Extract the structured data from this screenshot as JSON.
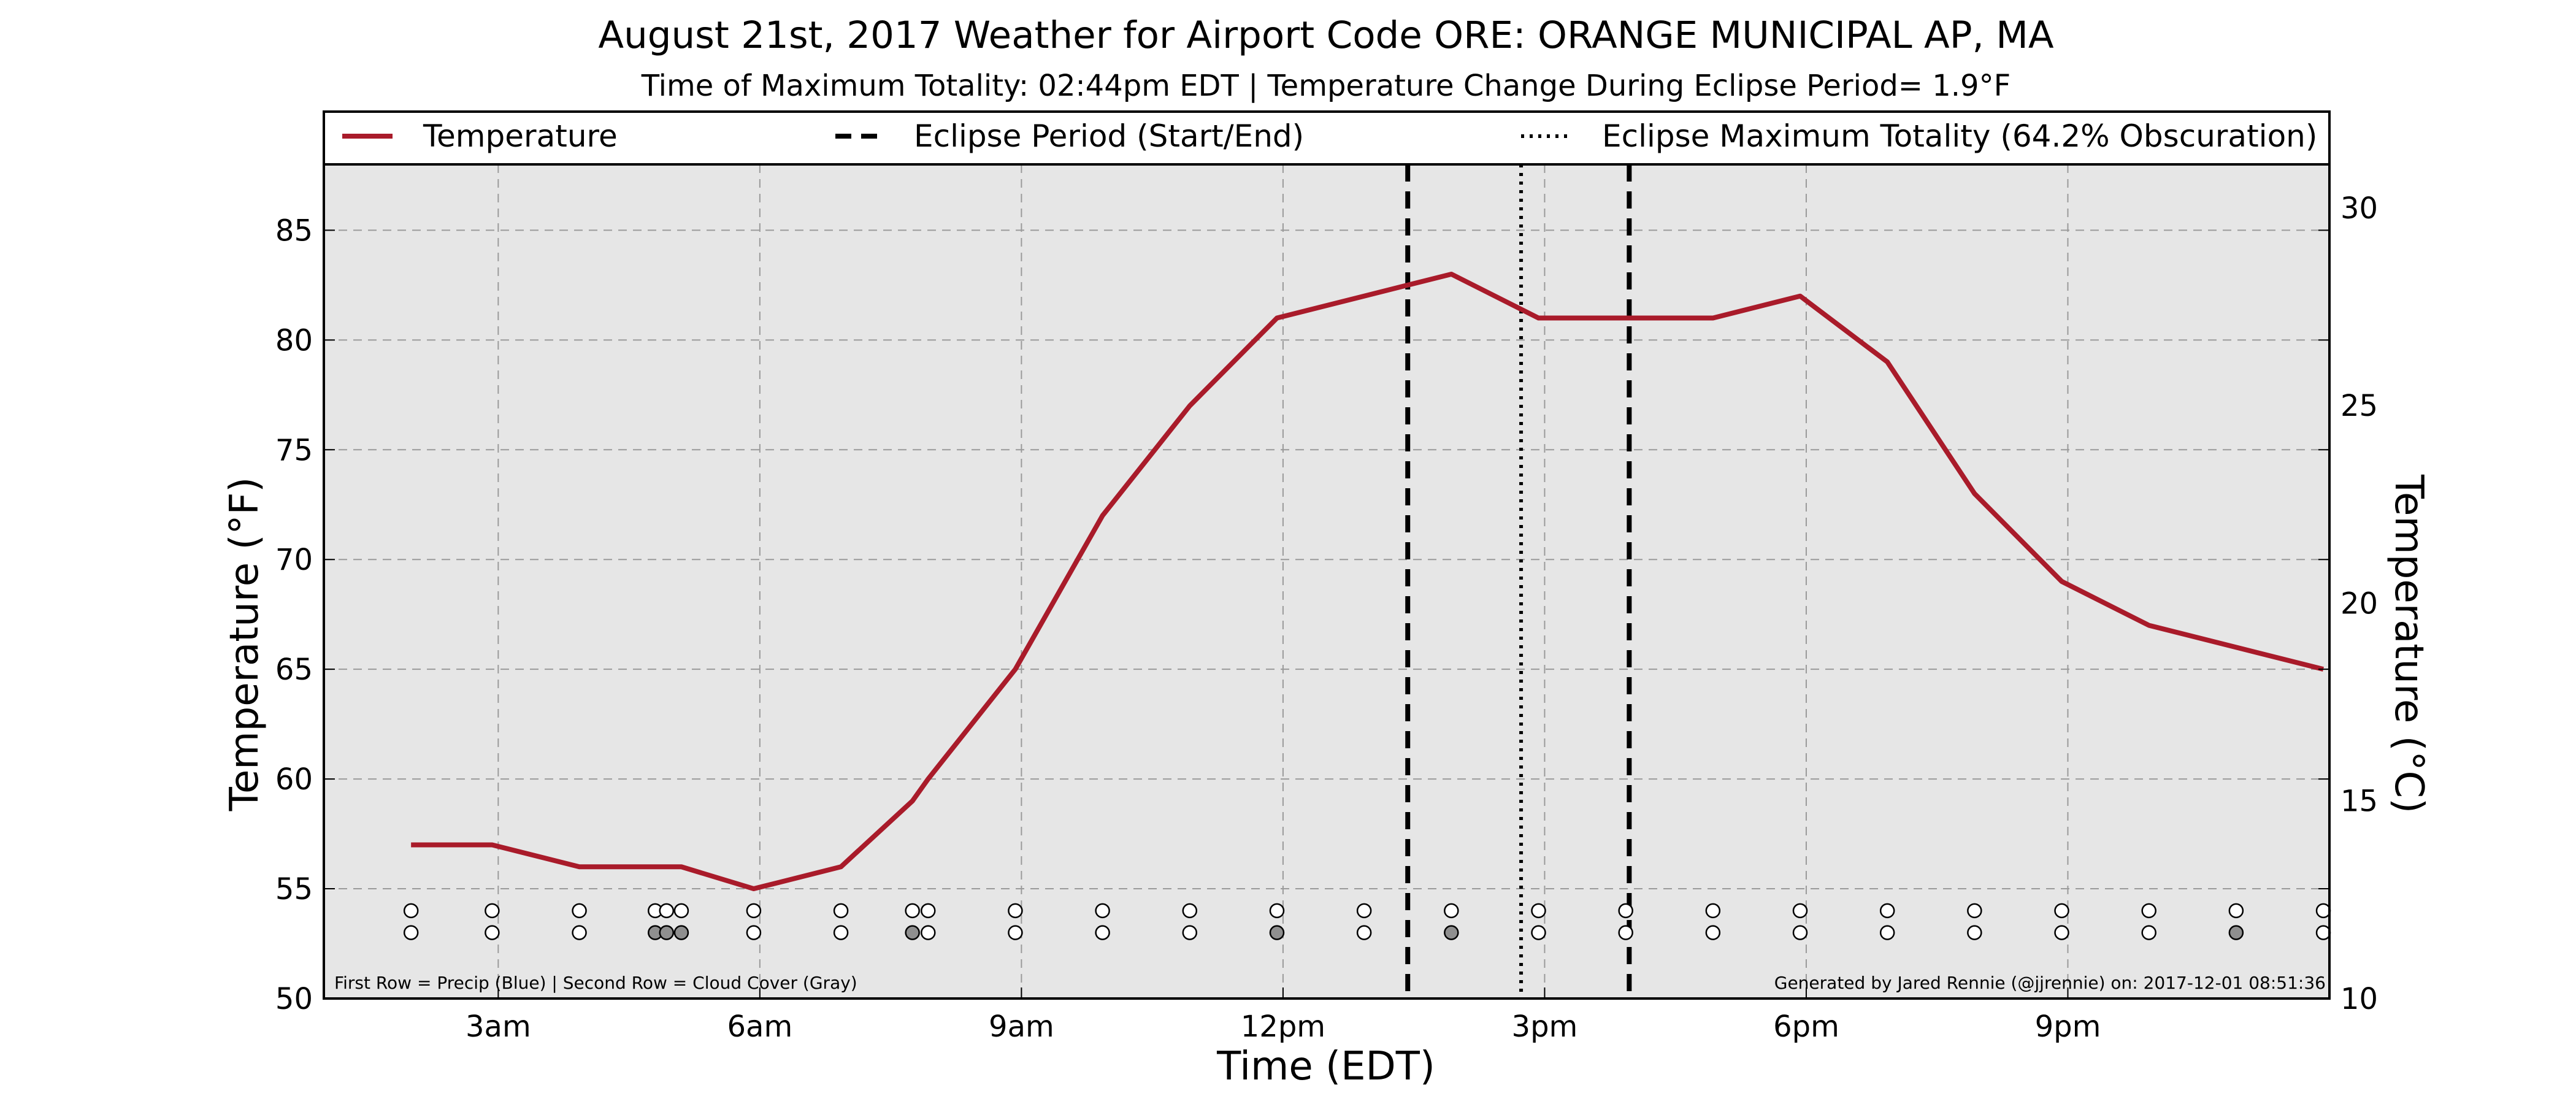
{
  "title": "August 21st, 2017 Weather for Airport Code ORE: ORANGE MUNICIPAL AP, MA",
  "subtitle": "Time of Maximum Totality: 02:44pm EDT | Temperature Change During Eclipse Period= 1.9°F",
  "footer_left": "First Row = Precip (Blue) | Second Row = Cloud Cover (Gray)",
  "footer_right": "Generated by Jared Rennie (@jjrennie) on: 2017-12-01 08:51:36",
  "colors": {
    "temperature_line": "#a91b2a",
    "plot_background": "#e6e6e6",
    "cloud_fill": "#8f8f8f",
    "clear_fill": "#ffffff"
  },
  "chart_data": {
    "type": "line",
    "xlabel": "Time (EDT)",
    "ylabel": "Temperature (°F)",
    "ylabel_right": "Temperature (°C)",
    "xlim": [
      1.0,
      24.0
    ],
    "ylim": [
      50,
      88
    ],
    "ylim_right": [
      10,
      31.1
    ],
    "grid": true,
    "legend_position": "top",
    "x_ticks": [
      {
        "x": 3,
        "label": "3am"
      },
      {
        "x": 6,
        "label": "6am"
      },
      {
        "x": 9,
        "label": "9am"
      },
      {
        "x": 12,
        "label": "12pm"
      },
      {
        "x": 15,
        "label": "3pm"
      },
      {
        "x": 18,
        "label": "6pm"
      },
      {
        "x": 21,
        "label": "9pm"
      }
    ],
    "y_ticks": [
      50,
      55,
      60,
      65,
      70,
      75,
      80,
      85
    ],
    "y_ticks_right": [
      10,
      15,
      20,
      25,
      30
    ],
    "legend": [
      {
        "label": "Temperature",
        "style": "solid"
      },
      {
        "label": "Eclipse Period (Start/End)",
        "style": "dashed"
      },
      {
        "label": "Eclipse Maximum Totality (64.2% Obscuration)",
        "style": "dotted"
      }
    ],
    "series": [
      {
        "name": "Temperature",
        "x": [
          2.0,
          2.93,
          3.93,
          4.93,
          5.1,
          5.93,
          6.93,
          7.75,
          7.93,
          8.93,
          9.93,
          10.93,
          11.93,
          12.93,
          13.93,
          14.93,
          15.93,
          16.93,
          17.93,
          18.93,
          19.93,
          20.93,
          21.93,
          22.93,
          23.93
        ],
        "y": [
          57,
          57,
          56,
          56,
          56,
          55,
          56,
          59,
          60,
          65,
          72,
          77,
          81,
          82,
          83,
          81,
          81,
          81,
          82,
          79,
          73,
          69,
          67,
          66,
          65
        ]
      }
    ],
    "eclipse_start": 13.43,
    "eclipse_end": 15.97,
    "eclipse_max": 14.73,
    "obs_rows": {
      "precip_y": 54,
      "cloud_y": 53,
      "times": [
        2.0,
        2.93,
        3.93,
        4.8,
        4.93,
        5.1,
        5.93,
        6.93,
        7.75,
        7.93,
        8.93,
        9.93,
        10.93,
        11.93,
        12.93,
        13.93,
        14.93,
        15.93,
        16.93,
        17.93,
        18.93,
        19.93,
        20.93,
        21.93,
        22.93,
        23.93
      ],
      "cloud_gray": [
        false,
        false,
        false,
        true,
        true,
        true,
        false,
        false,
        true,
        false,
        false,
        false,
        false,
        true,
        false,
        true,
        false,
        false,
        false,
        false,
        false,
        false,
        false,
        false,
        true,
        false
      ]
    }
  }
}
